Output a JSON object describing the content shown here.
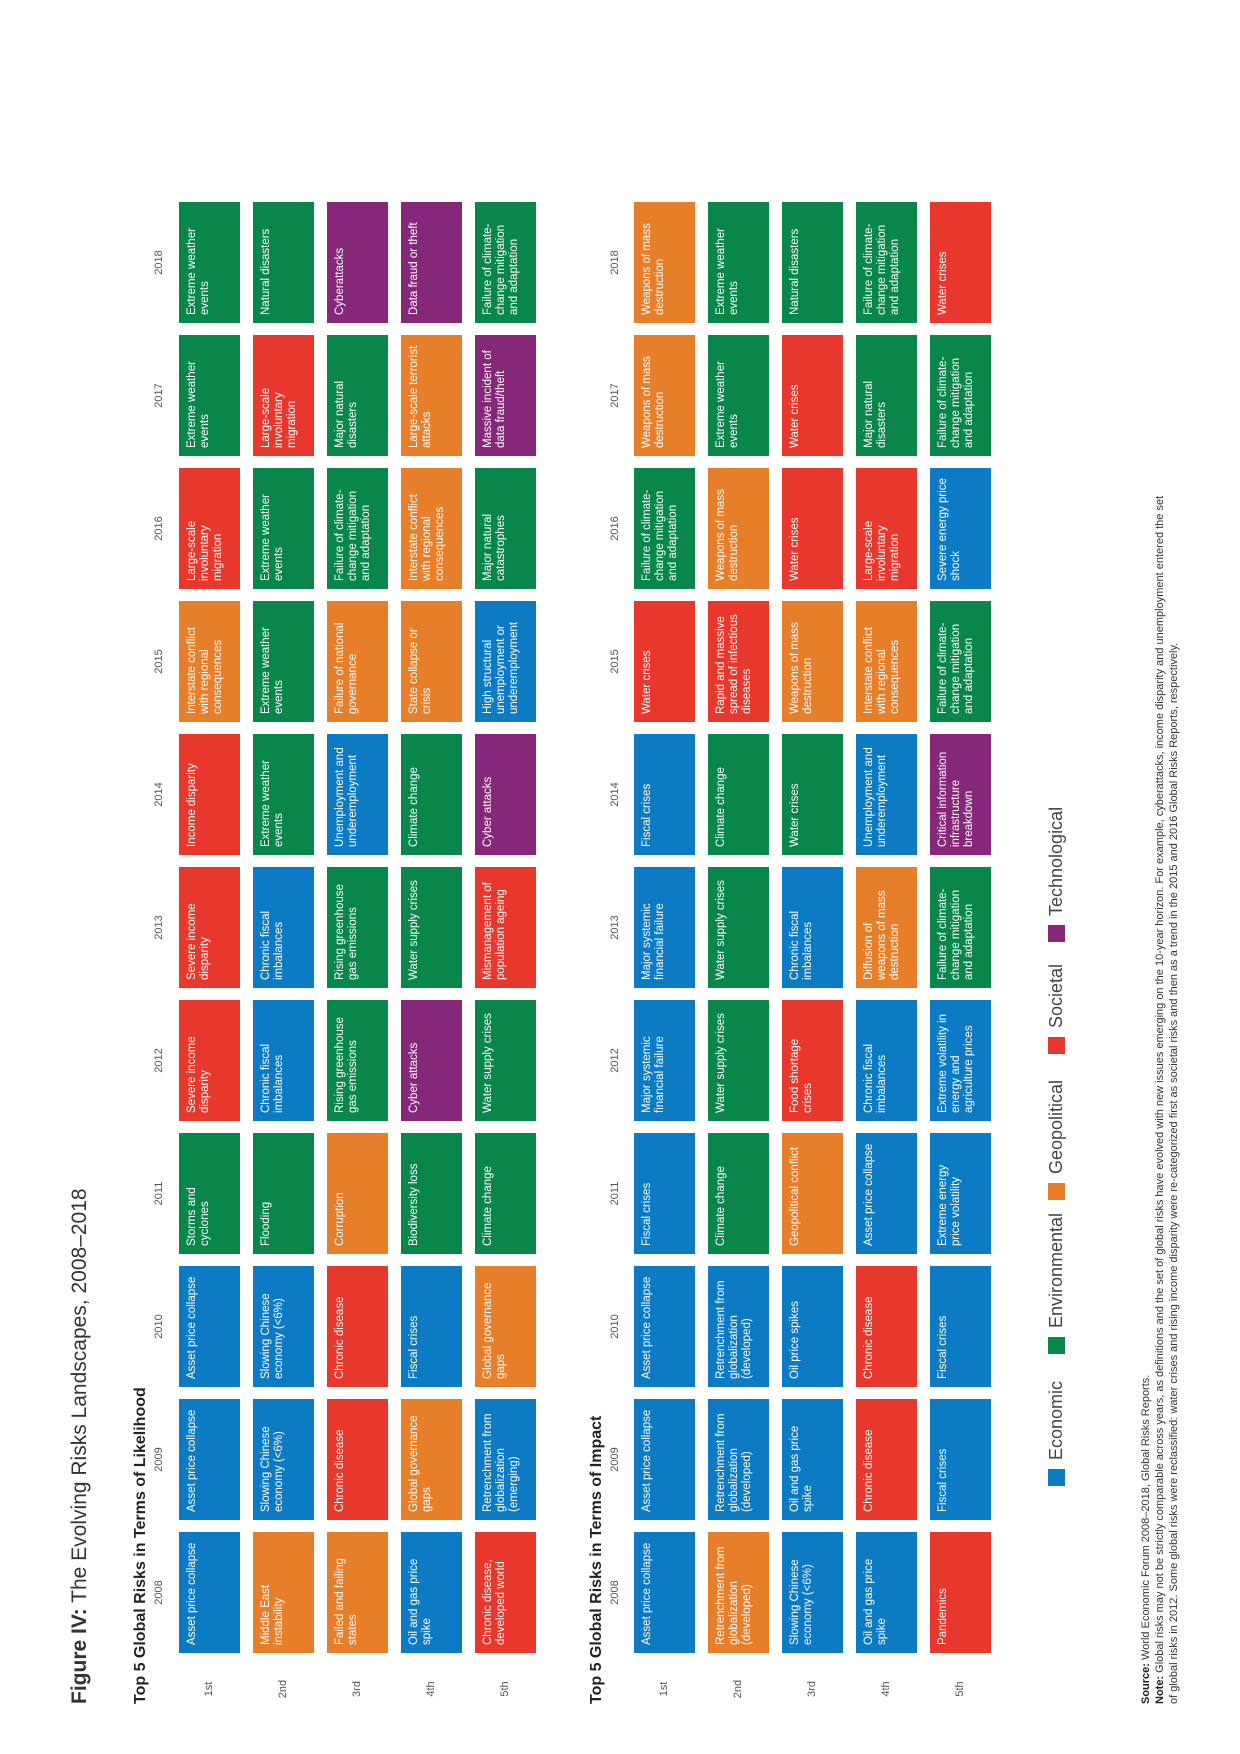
{
  "figure": {
    "label": "Figure IV:",
    "title": "The Evolving Risks Landscapes, 2008–2018"
  },
  "years": [
    "2008",
    "2009",
    "2010",
    "2011",
    "2012",
    "2013",
    "2014",
    "2015",
    "2016",
    "2017",
    "2018"
  ],
  "ranks": [
    "1st",
    "2nd",
    "3rd",
    "4th",
    "5th"
  ],
  "colors": {
    "economic": "#0d7bc3",
    "environmental": "#09874b",
    "geopolitical": "#e77f2a",
    "societal": "#e8382d",
    "technological": "#86287a"
  },
  "likelihood": {
    "title": "Top 5 Global Risks in Terms of Likelihood",
    "columns": [
      [
        {
          "t": "Asset price collapse",
          "c": "economic"
        },
        {
          "t": "Middle East instability",
          "c": "geopolitical"
        },
        {
          "t": "Failed and failing states",
          "c": "geopolitical"
        },
        {
          "t": "Oil and gas price spike",
          "c": "economic"
        },
        {
          "t": "Chronic disease, developed world",
          "c": "societal"
        }
      ],
      [
        {
          "t": "Asset price collapse",
          "c": "economic"
        },
        {
          "t": "Slowing Chinese economy (<6%)",
          "c": "economic"
        },
        {
          "t": "Chronic disease",
          "c": "societal"
        },
        {
          "t": "Global governance gaps",
          "c": "geopolitical"
        },
        {
          "t": "Retrenchment from globalization (emerging)",
          "c": "economic"
        }
      ],
      [
        {
          "t": "Asset price collapse",
          "c": "economic"
        },
        {
          "t": "Slowing Chinese economy (<6%)",
          "c": "economic"
        },
        {
          "t": "Chronic disease",
          "c": "societal"
        },
        {
          "t": "Fiscal crises",
          "c": "economic"
        },
        {
          "t": "Global governance gaps",
          "c": "geopolitical"
        }
      ],
      [
        {
          "t": "Storms and cyclones",
          "c": "environmental"
        },
        {
          "t": "Flooding",
          "c": "environmental"
        },
        {
          "t": "Corruption",
          "c": "geopolitical"
        },
        {
          "t": "Biodiversity loss",
          "c": "environmental"
        },
        {
          "t": "Climate change",
          "c": "environmental"
        }
      ],
      [
        {
          "t": "Severe income disparity",
          "c": "societal"
        },
        {
          "t": "Chronic fiscal imbalances",
          "c": "economic"
        },
        {
          "t": "Rising greenhouse gas emissions",
          "c": "environmental"
        },
        {
          "t": "Cyber attacks",
          "c": "technological"
        },
        {
          "t": "Water supply crises",
          "c": "environmental"
        }
      ],
      [
        {
          "t": "Severe income disparity",
          "c": "societal"
        },
        {
          "t": "Chronic fiscal imbalances",
          "c": "economic"
        },
        {
          "t": "Rising greenhouse gas emissions",
          "c": "environmental"
        },
        {
          "t": "Water supply crises",
          "c": "environmental"
        },
        {
          "t": "Mismanagement of population ageing",
          "c": "societal"
        }
      ],
      [
        {
          "t": "Income disparity",
          "c": "societal"
        },
        {
          "t": "Extreme weather events",
          "c": "environmental"
        },
        {
          "t": "Unemployment and underemployment",
          "c": "economic"
        },
        {
          "t": "Climate change",
          "c": "environmental"
        },
        {
          "t": "Cyber attacks",
          "c": "technological"
        }
      ],
      [
        {
          "t": "Interstate conflict with regional consequences",
          "c": "geopolitical"
        },
        {
          "t": "Extreme weather events",
          "c": "environmental"
        },
        {
          "t": "Failure of national governance",
          "c": "geopolitical"
        },
        {
          "t": "State collapse or crisis",
          "c": "geopolitical"
        },
        {
          "t": "High structural unemployment or underemployment",
          "c": "economic"
        }
      ],
      [
        {
          "t": "Large-scale involuntary migration",
          "c": "societal"
        },
        {
          "t": "Extreme weather events",
          "c": "environmental"
        },
        {
          "t": "Failure of climate-change mitigation and adaptation",
          "c": "environmental"
        },
        {
          "t": "Interstate conflict with regional consequences",
          "c": "geopolitical"
        },
        {
          "t": "Major natural catastrophes",
          "c": "environmental"
        }
      ],
      [
        {
          "t": "Extreme weather events",
          "c": "environmental"
        },
        {
          "t": "Large-scale involuntary migration",
          "c": "societal"
        },
        {
          "t": "Major natural disasters",
          "c": "environmental"
        },
        {
          "t": "Large-scale terrorist attacks",
          "c": "geopolitical"
        },
        {
          "t": "Massive incident of data fraud/theft",
          "c": "technological"
        }
      ],
      [
        {
          "t": "Extreme weather events",
          "c": "environmental"
        },
        {
          "t": "Natural disasters",
          "c": "environmental"
        },
        {
          "t": "Cyberattacks",
          "c": "technological"
        },
        {
          "t": "Data fraud or theft",
          "c": "technological"
        },
        {
          "t": "Failure of climate-change mitigation and adaptation",
          "c": "environmental"
        }
      ]
    ]
  },
  "impact": {
    "title": "Top 5 Global Risks in Terms of Impact",
    "columns": [
      [
        {
          "t": "Asset price collapse",
          "c": "economic"
        },
        {
          "t": "Retrenchment from globalization (developed)",
          "c": "geopolitical"
        },
        {
          "t": "Slowing Chinese economy (<6%)",
          "c": "economic"
        },
        {
          "t": "Oil and gas price spike",
          "c": "economic"
        },
        {
          "t": "Pandemics",
          "c": "societal"
        }
      ],
      [
        {
          "t": "Asset price collapse",
          "c": "economic"
        },
        {
          "t": "Retrenchment from globalization (developed)",
          "c": "economic"
        },
        {
          "t": "Oil and gas price spike",
          "c": "economic"
        },
        {
          "t": "Chronic disease",
          "c": "societal"
        },
        {
          "t": "Fiscal crises",
          "c": "economic"
        }
      ],
      [
        {
          "t": "Asset price collapse",
          "c": "economic"
        },
        {
          "t": "Retrenchment from globalization (developed)",
          "c": "economic"
        },
        {
          "t": "Oil price spikes",
          "c": "economic"
        },
        {
          "t": "Chronic disease",
          "c": "societal"
        },
        {
          "t": "Fiscal crises",
          "c": "economic"
        }
      ],
      [
        {
          "t": "Fiscal crises",
          "c": "economic"
        },
        {
          "t": "Climate change",
          "c": "environmental"
        },
        {
          "t": "Geopolitical conflict",
          "c": "geopolitical"
        },
        {
          "t": "Asset price collapse",
          "c": "economic"
        },
        {
          "t": "Extreme energy price volatility",
          "c": "economic"
        }
      ],
      [
        {
          "t": "Major systemic financial failure",
          "c": "economic"
        },
        {
          "t": "Water supply crises",
          "c": "environmental"
        },
        {
          "t": "Food shortage crises",
          "c": "societal"
        },
        {
          "t": "Chronic fiscal imbalances",
          "c": "economic"
        },
        {
          "t": "Extreme volatility in energy and agriculture prices",
          "c": "economic"
        }
      ],
      [
        {
          "t": "Major systemic financial failure",
          "c": "economic"
        },
        {
          "t": "Water supply crises",
          "c": "environmental"
        },
        {
          "t": "Chronic fiscal imbalances",
          "c": "economic"
        },
        {
          "t": "Diffusion of weapons of mass destruction",
          "c": "geopolitical"
        },
        {
          "t": "Failure of climate-change mitigation and adaptation",
          "c": "environmental"
        }
      ],
      [
        {
          "t": "Fiscal crises",
          "c": "economic"
        },
        {
          "t": "Climate change",
          "c": "environmental"
        },
        {
          "t": "Water crises",
          "c": "environmental"
        },
        {
          "t": "Unemployment and underemployment",
          "c": "economic"
        },
        {
          "t": "Critical information infrastructure breakdown",
          "c": "technological"
        }
      ],
      [
        {
          "t": "Water crises",
          "c": "societal"
        },
        {
          "t": "Rapid and massive spread of infectious diseases",
          "c": "societal"
        },
        {
          "t": "Weapons of mass destruction",
          "c": "geopolitical"
        },
        {
          "t": "Interstate conflict with regional consequences",
          "c": "geopolitical"
        },
        {
          "t": "Failure of climate-change mitigation and adaptation",
          "c": "environmental"
        }
      ],
      [
        {
          "t": "Failure of climate-change mitigation and adaptation",
          "c": "environmental"
        },
        {
          "t": "Weapons of mass destruction",
          "c": "geopolitical"
        },
        {
          "t": "Water crises",
          "c": "societal"
        },
        {
          "t": "Large-scale involuntary migration",
          "c": "societal"
        },
        {
          "t": "Severe energy price shock",
          "c": "economic"
        }
      ],
      [
        {
          "t": "Weapons of mass destruction",
          "c": "geopolitical"
        },
        {
          "t": "Extreme weather events",
          "c": "environmental"
        },
        {
          "t": "Water crises",
          "c": "societal"
        },
        {
          "t": "Major natural disasters",
          "c": "environmental"
        },
        {
          "t": "Failure of climate-change mitigation and adaptation",
          "c": "environmental"
        }
      ],
      [
        {
          "t": "Weapons of mass destruction",
          "c": "geopolitical"
        },
        {
          "t": "Extreme weather events",
          "c": "environmental"
        },
        {
          "t": "Natural disasters",
          "c": "environmental"
        },
        {
          "t": "Failure of climate-change mitigation and adaptation",
          "c": "environmental"
        },
        {
          "t": "Water crises",
          "c": "societal"
        }
      ]
    ]
  },
  "legend": [
    {
      "label": "Economic",
      "c": "economic"
    },
    {
      "label": "Environmental",
      "c": "environmental"
    },
    {
      "label": "Geopolitical",
      "c": "geopolitical"
    },
    {
      "label": "Societal",
      "c": "societal"
    },
    {
      "label": "Technological",
      "c": "technological"
    }
  ],
  "footnotes": {
    "source_label": "Source:",
    "source_text": " World Economic Forum 2008–2018, Global Risks Reports.",
    "note_label": "Note:",
    "note_line1": " Global risks may not be strictly comparable across years, as definitions and the set of global risks have evolved with new issues emerging on the 10-year horizon. For example, cyberattacks, income disparity and unemployment entered the set",
    "note_line2": "of global risks in 2012. Some global risks were reclassified: water crises and rising income disparity were re-categorized first as societal risks and then as a trend in the 2015 and 2016 Global Risks Reports, respectively."
  }
}
